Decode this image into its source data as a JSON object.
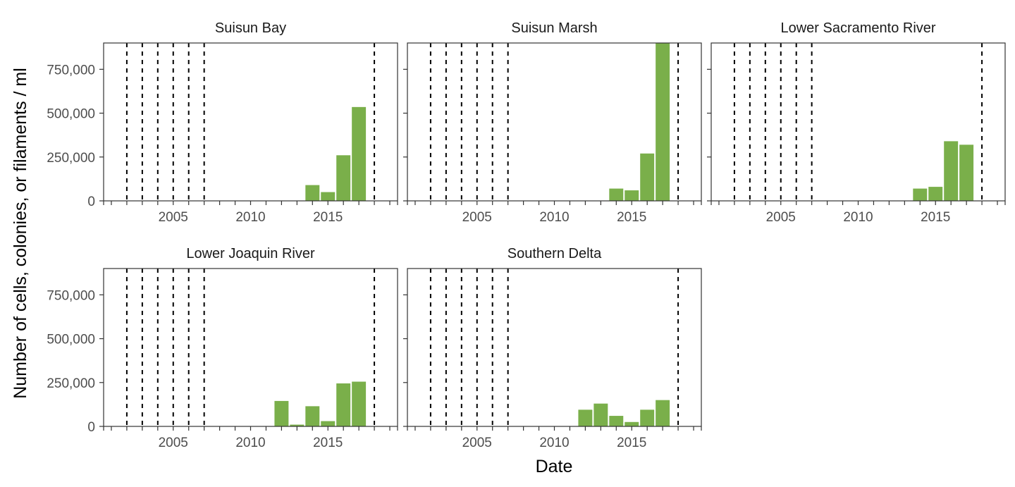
{
  "chart_data": {
    "type": "bar",
    "layout": "faceted, 3 columns x 2 rows",
    "xlabel": "Date",
    "ylabel": "Number of cells, colonies, or filaments / ml",
    "xlim": [
      2000.5,
      2019.5
    ],
    "ylim": [
      0,
      900000
    ],
    "x_ticks": [
      2005,
      2010,
      2015
    ],
    "y_ticks": [
      0,
      250000,
      500000,
      750000
    ],
    "y_tick_labels": [
      "0",
      "250,000",
      "500,000",
      "750,000"
    ],
    "bar_color": "#7aaf4a",
    "reference_line_style": "dashed, black",
    "grid": false,
    "panels": [
      {
        "title": "Suisun Bay",
        "x": [
          2014,
          2015,
          2016,
          2017
        ],
        "values": [
          90000,
          50000,
          260000,
          535000
        ],
        "reference_lines": [
          2002,
          2003,
          2004,
          2005,
          2006,
          2007,
          2018
        ]
      },
      {
        "title": "Suisun Marsh",
        "x": [
          2014,
          2015,
          2016,
          2017
        ],
        "values": [
          70000,
          60000,
          270000,
          900000
        ],
        "reference_lines": [
          2002,
          2003,
          2004,
          2005,
          2006,
          2007,
          2018
        ]
      },
      {
        "title": "Lower Sacramento River",
        "x": [
          2014,
          2015,
          2016,
          2017
        ],
        "values": [
          70000,
          80000,
          340000,
          320000
        ],
        "reference_lines": [
          2002,
          2003,
          2004,
          2005,
          2006,
          2007,
          2018
        ]
      },
      {
        "title": "Lower Joaquin River",
        "x": [
          2012,
          2013,
          2014,
          2015,
          2016,
          2017
        ],
        "values": [
          145000,
          10000,
          115000,
          30000,
          245000,
          255000
        ],
        "reference_lines": [
          2002,
          2003,
          2004,
          2005,
          2006,
          2007,
          2018
        ]
      },
      {
        "title": "Southern Delta",
        "x": [
          2012,
          2013,
          2014,
          2015,
          2016,
          2017
        ],
        "values": [
          95000,
          130000,
          60000,
          25000,
          95000,
          150000
        ],
        "reference_lines": [
          2002,
          2003,
          2004,
          2005,
          2006,
          2007,
          2018
        ]
      }
    ]
  }
}
